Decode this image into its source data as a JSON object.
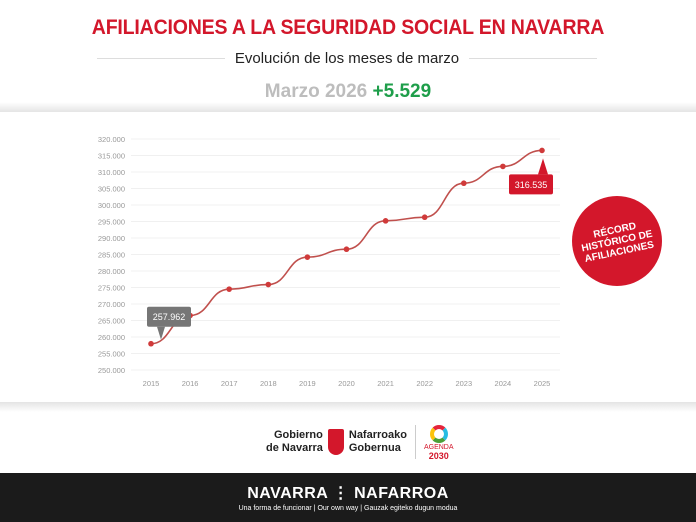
{
  "header": {
    "title": "AFILIACIONES A LA SEGURIDAD SOCIAL EN NAVARRA",
    "subtitle": "Evolución de los meses de marzo",
    "headline_month": "Marzo 2026",
    "headline_change": "+5.529"
  },
  "badge": {
    "line1": "RÉCORD",
    "line2": "HISTÓRICO DE",
    "line3": "AFILIACIONES"
  },
  "chart_data": {
    "type": "line",
    "title": "",
    "xlabel": "",
    "ylabel": "",
    "categories": [
      "2015",
      "2016",
      "2017",
      "2018",
      "2019",
      "2020",
      "2021",
      "2022",
      "2023",
      "2024",
      "2025"
    ],
    "values": [
      257962,
      266500,
      274500,
      275900,
      284200,
      286600,
      295200,
      296300,
      306600,
      311700,
      316535
    ],
    "ylim": [
      250000,
      320000
    ],
    "yticks": [
      "250.000",
      "255.000",
      "260.000",
      "265.000",
      "270.000",
      "275.000",
      "280.000",
      "285.000",
      "290.000",
      "295.000",
      "300.000",
      "305.000",
      "310.000",
      "315.000",
      "320.000"
    ],
    "grid": true,
    "annotations": [
      {
        "category": "2015",
        "label": "257.962",
        "color": "#767676"
      },
      {
        "category": "2025",
        "label": "316.535",
        "color": "#d3172b"
      }
    ],
    "line_color": "#c0504d"
  },
  "logos": {
    "gob_es_1": "Gobierno",
    "gob_es_2": "de Navarra",
    "gob_eu_1": "Nafarroako",
    "gob_eu_2": "Gobernua",
    "agenda_1": "AGENDA",
    "agenda_2": "2030"
  },
  "footer": {
    "brand": "NAVARRA ⋮ NAFARROA",
    "tagline": "Una forma de funcionar | Our own way | Gauzak egiteko dugun modua"
  }
}
